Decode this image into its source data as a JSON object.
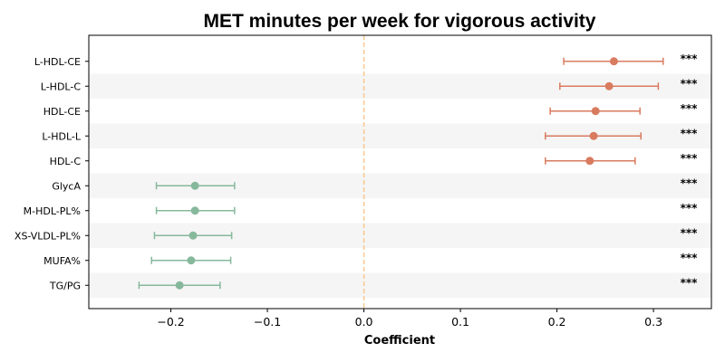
{
  "chart_data": {
    "type": "forest",
    "title": "MET minutes per week for vigorous activity",
    "xlabel": "Coefficient",
    "xlim": [
      -0.285,
      0.36
    ],
    "xticks": [
      -0.2,
      -0.1,
      0.0,
      0.1,
      0.2,
      0.3
    ],
    "xtick_labels": [
      "−0.2",
      "−0.1",
      "0.0",
      "0.1",
      "0.2",
      "0.3"
    ],
    "reference_line": 0.0,
    "band_color": "#f5f5f5",
    "reference_color": "#f6c88f",
    "positive_color": "#d97b5f",
    "negative_color": "#86b89c",
    "rows": [
      {
        "label": "L-HDL-CE",
        "coef": 0.259,
        "ci_low": 0.207,
        "ci_high": 0.31,
        "sig": "***"
      },
      {
        "label": "L-HDL-C",
        "coef": 0.254,
        "ci_low": 0.203,
        "ci_high": 0.305,
        "sig": "***"
      },
      {
        "label": "HDL-CE",
        "coef": 0.24,
        "ci_low": 0.193,
        "ci_high": 0.286,
        "sig": "***"
      },
      {
        "label": "L-HDL-L",
        "coef": 0.238,
        "ci_low": 0.188,
        "ci_high": 0.287,
        "sig": "***"
      },
      {
        "label": "HDL-C",
        "coef": 0.234,
        "ci_low": 0.188,
        "ci_high": 0.281,
        "sig": "***"
      },
      {
        "label": "GlycA",
        "coef": -0.175,
        "ci_low": -0.215,
        "ci_high": -0.134,
        "sig": "***"
      },
      {
        "label": "M-HDL-PL%",
        "coef": -0.175,
        "ci_low": -0.215,
        "ci_high": -0.134,
        "sig": "***"
      },
      {
        "label": "XS-VLDL-PL%",
        "coef": -0.177,
        "ci_low": -0.217,
        "ci_high": -0.137,
        "sig": "***"
      },
      {
        "label": "MUFA%",
        "coef": -0.179,
        "ci_low": -0.22,
        "ci_high": -0.138,
        "sig": "***"
      },
      {
        "label": "TG/PG",
        "coef": -0.191,
        "ci_low": -0.233,
        "ci_high": -0.149,
        "sig": "***"
      }
    ]
  }
}
